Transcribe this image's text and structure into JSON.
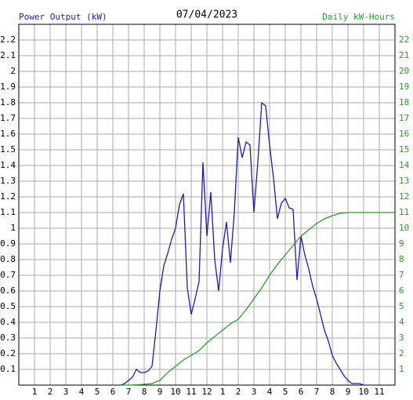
{
  "chart_data": {
    "type": "line",
    "title": "07/04/2023",
    "y_label": "Power Output (kW)",
    "y2_label": "Daily kW-Hours",
    "xlim": [
      0,
      24
    ],
    "xticks": [
      1,
      2,
      3,
      4,
      5,
      6,
      7,
      8,
      9,
      10,
      11,
      12,
      {
        "value": 13,
        "label": "1"
      },
      {
        "value": 14,
        "label": "2"
      },
      {
        "value": 15,
        "label": "3"
      },
      {
        "value": 16,
        "label": "4"
      },
      {
        "value": 17,
        "label": "5"
      },
      {
        "value": 18,
        "label": "6"
      },
      {
        "value": 19,
        "label": "7"
      },
      {
        "value": 20,
        "label": "8"
      },
      {
        "value": 21,
        "label": "9"
      },
      {
        "value": 22,
        "label": "10"
      },
      {
        "value": 23,
        "label": "11"
      }
    ],
    "ylim": [
      0,
      2.3
    ],
    "yticks": [
      0.1,
      0.2,
      0.3,
      0.4,
      0.5,
      0.6,
      0.7,
      0.8,
      0.9,
      1.0,
      1.1,
      1.2,
      1.3,
      1.4,
      1.5,
      1.6,
      1.7,
      1.8,
      1.9,
      2.0,
      2.1,
      2.2
    ],
    "y2lim": [
      0,
      23
    ],
    "y2ticks": [
      1,
      2,
      3,
      4,
      5,
      6,
      7,
      8,
      9,
      10,
      11,
      12,
      13,
      14,
      15,
      16,
      17,
      18,
      19,
      20,
      21,
      22
    ],
    "grid": true,
    "series": [
      {
        "color": "#1c1cb0",
        "x": [
          6.5,
          6.75,
          7,
          7.25,
          7.5,
          7.75,
          8,
          8.25,
          8.5,
          8.75,
          9,
          9.25,
          9.5,
          9.75,
          10,
          10.25,
          10.5,
          10.75,
          11,
          11.25,
          11.5,
          11.75,
          12,
          12.25,
          12.5,
          12.75,
          13,
          13.25,
          13.5,
          13.75,
          14,
          14.25,
          14.5,
          14.75,
          15,
          15.25,
          15.5,
          15.75,
          16,
          16.25,
          16.5,
          16.75,
          17,
          17.25,
          17.5,
          17.75,
          18,
          18.25,
          18.5,
          18.75,
          19,
          19.25,
          19.5,
          19.75,
          20,
          20.25,
          20.5,
          20.75,
          21,
          21.25,
          21.5,
          21.75,
          22
        ],
        "values": [
          0,
          0.01,
          0.03,
          0.05,
          0.1,
          0.08,
          0.08,
          0.09,
          0.12,
          0.35,
          0.6,
          0.76,
          0.84,
          0.93,
          1.0,
          1.15,
          1.22,
          0.62,
          0.45,
          0.55,
          0.66,
          1.42,
          0.95,
          1.23,
          0.8,
          0.6,
          0.87,
          1.04,
          0.78,
          1.1,
          1.58,
          1.45,
          1.55,
          1.53,
          1.1,
          1.42,
          1.8,
          1.78,
          1.53,
          1.32,
          1.06,
          1.16,
          1.19,
          1.13,
          1.12,
          0.67,
          0.95,
          0.83,
          0.74,
          0.63,
          0.55,
          0.45,
          0.35,
          0.28,
          0.19,
          0.14,
          0.1,
          0.06,
          0.03,
          0.01,
          0.01,
          0.01,
          0
        ]
      },
      {
        "color": "#2a9a2a",
        "axis": "y2",
        "x": [
          6.5,
          7,
          7.5,
          8,
          8.5,
          9,
          9.5,
          10,
          10.5,
          11,
          11.5,
          12,
          12.5,
          13,
          13.5,
          14,
          14.5,
          15,
          15.5,
          16,
          16.5,
          17,
          17.5,
          18,
          18.5,
          19,
          19.5,
          20,
          20.5,
          21,
          22,
          23,
          24
        ],
        "values": [
          0,
          0,
          0.02,
          0.05,
          0.1,
          0.3,
          0.8,
          1.2,
          1.6,
          1.9,
          2.2,
          2.7,
          3.1,
          3.5,
          3.9,
          4.2,
          4.8,
          5.5,
          6.2,
          7.0,
          7.7,
          8.3,
          8.9,
          9.5,
          9.9,
          10.3,
          10.6,
          10.8,
          10.95,
          11.0,
          11.0,
          11.0,
          11.0
        ]
      }
    ]
  }
}
